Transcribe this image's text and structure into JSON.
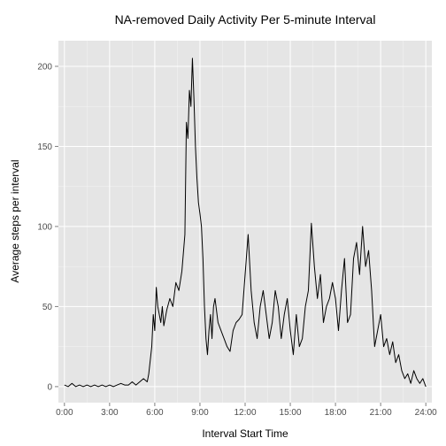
{
  "chart_data": {
    "type": "line",
    "title": "NA-removed Daily Activity Per 5-minute Interval",
    "xlabel": "Interval Start Time",
    "ylabel": "Average steps per interval",
    "x_unit": "hours",
    "xlim": [
      -0.4,
      24.4
    ],
    "ylim": [
      -10,
      216
    ],
    "x_ticks": [
      0,
      3,
      6,
      9,
      12,
      15,
      18,
      21,
      24
    ],
    "x_tick_labels": [
      "0:00",
      "3:00",
      "6:00",
      "9:00",
      "12:00",
      "15:00",
      "18:00",
      "21:00",
      "24:00"
    ],
    "y_ticks": [
      0,
      50,
      100,
      150,
      200
    ],
    "y_tick_labels": [
      "0",
      "50",
      "100",
      "150",
      "200"
    ],
    "grid": true,
    "colors": {
      "panel": "#e5e5e5",
      "line": "#000000"
    },
    "series": [
      {
        "x": [
          0.0,
          0.25,
          0.5,
          0.75,
          1.0,
          1.25,
          1.5,
          1.75,
          2.0,
          2.25,
          2.5,
          2.75,
          3.0,
          3.25,
          3.5,
          3.75,
          4.0,
          4.25,
          4.5,
          4.75,
          5.0,
          5.25,
          5.5,
          5.6,
          5.8,
          5.9,
          6.0,
          6.1,
          6.2,
          6.3,
          6.4,
          6.5,
          6.6,
          6.8,
          7.0,
          7.2,
          7.4,
          7.6,
          7.8,
          8.0,
          8.1,
          8.2,
          8.3,
          8.4,
          8.5,
          8.6,
          8.7,
          8.8,
          8.9,
          9.0,
          9.1,
          9.2,
          9.3,
          9.4,
          9.5,
          9.6,
          9.7,
          9.8,
          9.9,
          10.0,
          10.2,
          10.4,
          10.6,
          10.8,
          11.0,
          11.2,
          11.4,
          11.6,
          11.8,
          12.0,
          12.2,
          12.4,
          12.6,
          12.8,
          13.0,
          13.2,
          13.4,
          13.6,
          13.8,
          14.0,
          14.2,
          14.4,
          14.6,
          14.8,
          15.0,
          15.2,
          15.4,
          15.6,
          15.8,
          16.0,
          16.2,
          16.4,
          16.6,
          16.8,
          17.0,
          17.2,
          17.4,
          17.6,
          17.8,
          18.0,
          18.2,
          18.4,
          18.6,
          18.8,
          19.0,
          19.2,
          19.4,
          19.6,
          19.8,
          20.0,
          20.2,
          20.4,
          20.6,
          20.8,
          21.0,
          21.2,
          21.4,
          21.6,
          21.8,
          22.0,
          22.2,
          22.4,
          22.6,
          22.8,
          23.0,
          23.2,
          23.4,
          23.6,
          23.8,
          24.0
        ],
        "y": [
          1,
          0,
          2,
          0,
          1,
          0,
          1,
          0,
          1,
          0,
          1,
          0,
          1,
          0,
          1,
          2,
          1,
          1,
          3,
          1,
          3,
          5,
          3,
          8,
          25,
          45,
          35,
          62,
          50,
          45,
          40,
          50,
          38,
          48,
          55,
          50,
          65,
          60,
          72,
          95,
          165,
          155,
          185,
          175,
          205,
          180,
          150,
          130,
          115,
          108,
          100,
          80,
          50,
          30,
          20,
          35,
          45,
          30,
          50,
          55,
          40,
          35,
          30,
          25,
          22,
          35,
          40,
          42,
          45,
          70,
          95,
          60,
          40,
          30,
          50,
          60,
          45,
          30,
          40,
          60,
          50,
          30,
          45,
          55,
          35,
          20,
          45,
          25,
          30,
          50,
          60,
          102,
          75,
          55,
          70,
          40,
          50,
          55,
          65,
          55,
          35,
          60,
          80,
          40,
          45,
          80,
          90,
          70,
          100,
          75,
          85,
          60,
          25,
          35,
          45,
          25,
          30,
          20,
          28,
          15,
          20,
          10,
          5,
          8,
          2,
          10,
          5,
          2,
          5,
          0
        ]
      }
    ]
  }
}
